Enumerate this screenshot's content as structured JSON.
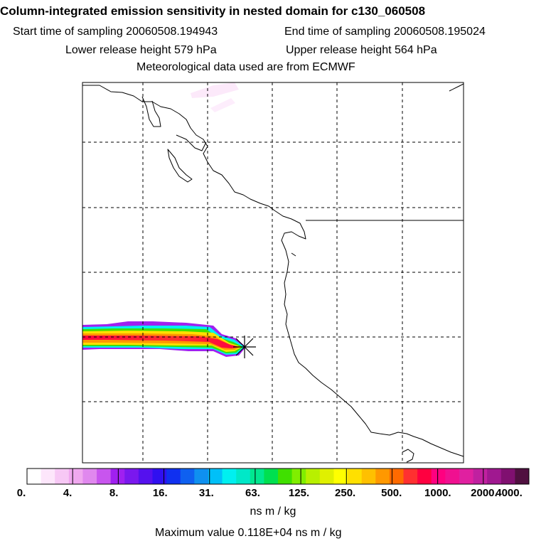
{
  "header": {
    "title": "Column-integrated emission sensitivity in nested domain for c130_060508",
    "start_label": "Start time of sampling 20060508.194943",
    "end_label": "End time of sampling 20060508.195024",
    "lower_label": "Lower release height  579 hPa",
    "upper_label": "Upper release height  564 hPa",
    "met_label": "Meteorological data used are from ECMWF"
  },
  "legend": {
    "ticks": [
      "0.",
      "4.",
      "8.",
      "16.",
      "31.",
      "63.",
      "125.",
      "250.",
      "500.",
      "1000.",
      "2000.",
      "4000."
    ],
    "units": "ns m / kg",
    "colors": [
      "#ffffff",
      "#fde6fb",
      "#f7c8f5",
      "#f0a8ef",
      "#e088ee",
      "#c855ee",
      "#a020f0",
      "#7a18ee",
      "#5511ee",
      "#3010f0",
      "#1030f0",
      "#0f60f0",
      "#0f90f0",
      "#00c0f8",
      "#00f0f0",
      "#00e8c8",
      "#00e890",
      "#00e050",
      "#40e000",
      "#80ee00",
      "#b8f000",
      "#e0f000",
      "#ffff00",
      "#ffe000",
      "#ffc000",
      "#ff9800",
      "#ff6a00",
      "#ff3030",
      "#ff0040",
      "#ff0080",
      "#f01090",
      "#e020a0",
      "#c020a0",
      "#a01890",
      "#801070",
      "#501040"
    ]
  },
  "max_value": "Maximum value  0.118E+04 ns m / kg"
}
